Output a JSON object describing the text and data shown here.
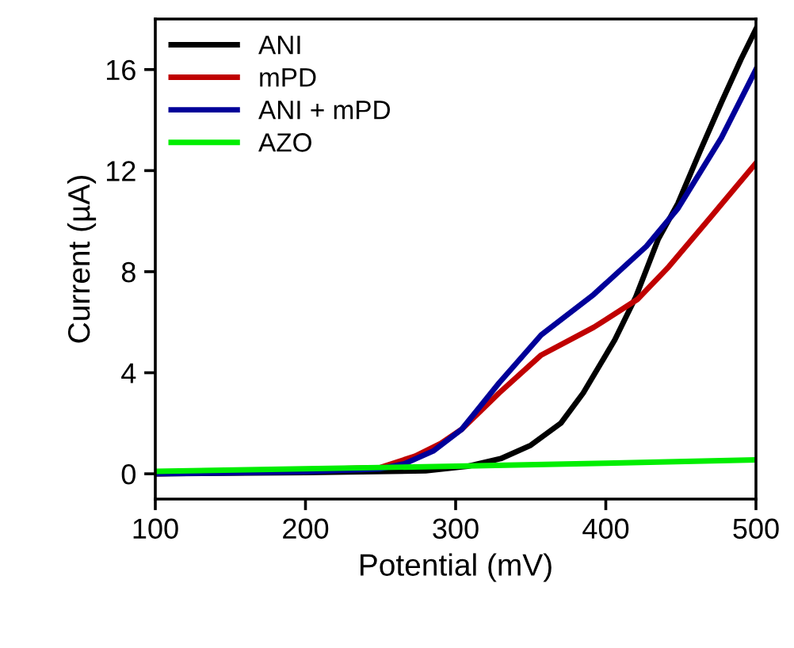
{
  "chart_data": {
    "type": "line",
    "xlabel": "Potential (mV)",
    "ylabel": "Current (µA)",
    "xlim": [
      100,
      500
    ],
    "ylim": [
      -1,
      18
    ],
    "xticks": [
      100,
      200,
      300,
      400,
      500
    ],
    "yticks": [
      0,
      4,
      8,
      12,
      16
    ],
    "grid": false,
    "legend": "top left",
    "marker": "none",
    "line_style": "solid",
    "series": [
      {
        "name": "ANI",
        "color": "#000000",
        "x": [
          100,
          200,
          280,
          308,
          330,
          350,
          370,
          385,
          406,
          420,
          435,
          448,
          463,
          477,
          490,
          500
        ],
        "values": [
          0.0,
          0.05,
          0.12,
          0.3,
          0.6,
          1.13,
          2.0,
          3.2,
          5.3,
          7.0,
          9.3,
          10.7,
          12.8,
          14.7,
          16.4,
          17.6
        ]
      },
      {
        "name": "mPD",
        "color": "#c00000",
        "x": [
          100,
          250,
          273,
          290,
          304,
          329,
          357,
          392,
          421,
          442,
          469,
          500
        ],
        "values": [
          0.0,
          0.25,
          0.7,
          1.2,
          1.76,
          3.2,
          4.7,
          5.8,
          6.9,
          8.2,
          10.1,
          12.3
        ]
      },
      {
        "name": "ANI + mPD",
        "color": "#000099",
        "x": [
          100,
          200,
          250,
          266,
          285,
          304,
          329,
          357,
          392,
          427,
          448,
          477,
          500
        ],
        "values": [
          0.0,
          0.08,
          0.2,
          0.4,
          0.9,
          1.76,
          3.6,
          5.5,
          7.1,
          9.0,
          10.5,
          13.3,
          16.0
        ]
      },
      {
        "name": "AZO",
        "color": "#00ee00",
        "x": [
          100,
          200,
          300,
          400,
          500
        ],
        "values": [
          0.1,
          0.2,
          0.3,
          0.42,
          0.55
        ]
      }
    ]
  }
}
